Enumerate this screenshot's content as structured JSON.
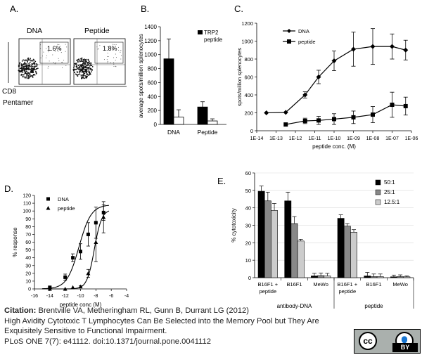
{
  "panels": {
    "A": {
      "letter": "A.",
      "label_dna": "DNA",
      "label_peptide": "Peptide",
      "gate_dna": "1.6%",
      "gate_peptide": "1.8%",
      "y_marker": "CD8",
      "x_marker": "Pentamer"
    },
    "B": {
      "letter": "B."
    },
    "C": {
      "letter": "C."
    },
    "D": {
      "letter": "D."
    },
    "E": {
      "letter": "E."
    }
  },
  "chart_data": [
    {
      "id": "B",
      "type": "bar",
      "ylabel": "average spots/million splenocytes",
      "ylim": [
        0,
        1400
      ],
      "yticks": [
        0,
        200,
        400,
        600,
        800,
        1000,
        1200,
        1400
      ],
      "categories": [
        "DNA",
        "Peptide"
      ],
      "legend": [
        "TRP2",
        "peptide"
      ],
      "series": [
        {
          "fill": "#000000",
          "values": [
            940,
            250
          ],
          "errors": [
            285,
            75
          ]
        },
        {
          "fill": "#ffffff",
          "values": [
            105,
            50
          ],
          "errors": [
            105,
            30
          ]
        }
      ]
    },
    {
      "id": "C",
      "type": "line",
      "xlabel": "peptide conc. (M)",
      "ylabel": "spots/million splenocytes",
      "ylim": [
        0,
        1200
      ],
      "yticks": [
        0,
        200,
        400,
        600,
        800,
        1000,
        1200
      ],
      "xticks": [
        "1E-14",
        "1E-13",
        "1E-12",
        "1E-11",
        "1E-10",
        "1E-09",
        "1E-08",
        "1E-07",
        "1E-06"
      ],
      "xscale": "log",
      "x_exponents": [
        -14,
        -13,
        -12,
        -11,
        -10,
        -9,
        -8,
        -7,
        -6
      ],
      "series": [
        {
          "name": "DNA",
          "marker": "diamond",
          "x_exp": [
            -13.5,
            -12.5,
            -11.5,
            -10.8,
            -10.0,
            -9.0,
            -8.0,
            -7.0,
            -6.3
          ],
          "y": [
            200,
            205,
            400,
            600,
            780,
            910,
            940,
            940,
            900
          ],
          "err": [
            0,
            0,
            35,
            75,
            110,
            190,
            200,
            140,
            110
          ]
        },
        {
          "name": "peptide",
          "marker": "square",
          "x_exp": [
            -12.5,
            -11.5,
            -10.8,
            -10.0,
            -9.0,
            -8.0,
            -7.0,
            -6.3
          ],
          "y": [
            70,
            110,
            115,
            130,
            150,
            180,
            290,
            275
          ],
          "err": [
            0,
            30,
            45,
            60,
            70,
            90,
            140,
            100
          ]
        }
      ]
    },
    {
      "id": "D",
      "type": "scatter",
      "xlabel": "peptide conc (M)",
      "ylabel": "% response",
      "xlim": [
        -16,
        -4
      ],
      "xticks": [
        -16,
        -14,
        -12,
        -10,
        -8,
        -6,
        -4
      ],
      "ylim": [
        0,
        120
      ],
      "yticks": [
        0,
        10,
        20,
        30,
        40,
        50,
        60,
        70,
        80,
        90,
        100,
        110,
        120
      ],
      "series": [
        {
          "name": "DNA",
          "marker": "square",
          "x": [
            -14,
            -12,
            -11,
            -10,
            -9,
            -8,
            -7
          ],
          "y": [
            2,
            15,
            40,
            48,
            70,
            85,
            98
          ],
          "err": [
            0,
            4,
            5,
            10,
            15,
            20,
            10
          ]
        },
        {
          "name": "peptide",
          "marker": "triangle",
          "x": [
            -14,
            -12,
            -11,
            -10,
            -9,
            -8,
            -7
          ],
          "y": [
            0,
            0,
            2,
            3,
            20,
            60,
            92
          ],
          "err": [
            0,
            0,
            0,
            1,
            5,
            25,
            20
          ]
        }
      ]
    },
    {
      "id": "E",
      "type": "bar",
      "ylabel": "% cytotoxicity",
      "ylim": [
        0,
        60
      ],
      "yticks": [
        0,
        10,
        20,
        30,
        40,
        50,
        60
      ],
      "categories": [
        "B16F1 + peptide",
        "B16F1",
        "MeWo",
        "B16F1 + peptide",
        "B16F1",
        "MeWo"
      ],
      "groups": [
        "antibody-DNA",
        "peptide"
      ],
      "legend": [
        "50:1",
        "25:1",
        "12.5:1"
      ],
      "series": [
        {
          "name": "50:1",
          "fill": "#000000",
          "values": [
            49.5,
            44,
            1,
            34,
            1,
            0.5
          ],
          "errors": [
            3,
            5,
            1.5,
            2,
            2,
            1
          ]
        },
        {
          "name": "25:1",
          "fill": "#888888",
          "values": [
            44,
            31,
            1.2,
            29.5,
            0.6,
            0.6
          ],
          "errors": [
            5,
            4,
            1.5,
            1.5,
            1.5,
            1
          ]
        },
        {
          "name": "12.5:1",
          "fill": "#cccccc",
          "values": [
            38.5,
            21,
            1,
            26,
            0.6,
            0.5
          ],
          "errors": [
            4,
            1,
            1.5,
            1.5,
            1.5,
            0.5
          ]
        }
      ]
    }
  ],
  "citation": {
    "label": "Citation:",
    "authors": "Brentville VA, Metheringham RL, Gunn B, Durrant LG (2012)",
    "title_line1": "High Avidity Cytotoxic T Lymphocytes Can Be Selected into the Memory Pool but They Are",
    "title_line2": "Exquisitely Sensitive to Functional Impairment.",
    "journal": "PLoS ONE 7(7): e41112. doi:10.1371/journal.pone.0041112"
  },
  "license_badge": {
    "cc": "cc",
    "by": "BY"
  }
}
